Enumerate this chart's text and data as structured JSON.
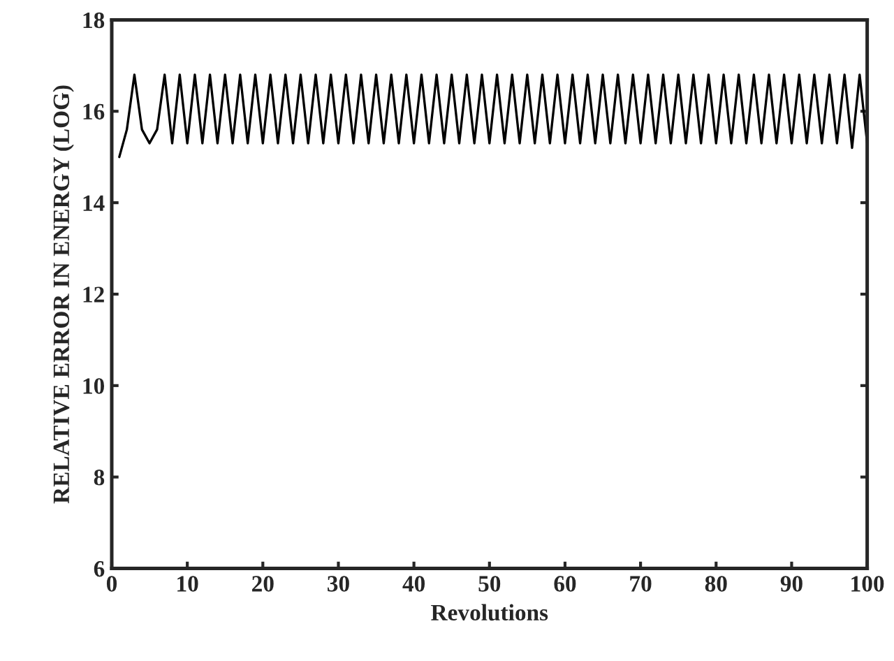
{
  "chart_data": {
    "type": "line",
    "xlabel": "Revolutions",
    "ylabel": "RELATIVE ERROR IN ENERGY (LOG)",
    "xlim": [
      0,
      100
    ],
    "xticks": [
      0,
      10,
      20,
      30,
      40,
      50,
      60,
      70,
      80,
      90,
      100
    ],
    "ylim": [
      6,
      18
    ],
    "yticks": [
      6,
      8,
      10,
      12,
      14,
      16,
      18
    ],
    "grid": false,
    "line_style": "solid",
    "series": [
      {
        "color": "#000000",
        "x": [
          1,
          2,
          3,
          4,
          5,
          6,
          7,
          8,
          9,
          10,
          11,
          12,
          13,
          14,
          15,
          16,
          17,
          18,
          19,
          20,
          21,
          22,
          23,
          24,
          25,
          26,
          27,
          28,
          29,
          30,
          31,
          32,
          33,
          34,
          35,
          36,
          37,
          38,
          39,
          40,
          41,
          42,
          43,
          44,
          45,
          46,
          47,
          48,
          49,
          50,
          51,
          52,
          53,
          54,
          55,
          56,
          57,
          58,
          59,
          60,
          61,
          62,
          63,
          64,
          65,
          66,
          67,
          68,
          69,
          70,
          71,
          72,
          73,
          74,
          75,
          76,
          77,
          78,
          79,
          80,
          81,
          82,
          83,
          84,
          85,
          86,
          87,
          88,
          89,
          90,
          91,
          92,
          93,
          94,
          95,
          96,
          97,
          98,
          99,
          100
        ],
        "values": [
          15.0,
          15.6,
          16.8,
          15.6,
          15.3,
          15.6,
          16.8,
          15.3,
          16.8,
          15.3,
          16.8,
          15.3,
          16.8,
          15.3,
          16.8,
          15.3,
          16.8,
          15.3,
          16.8,
          15.3,
          16.8,
          15.3,
          16.8,
          15.3,
          16.8,
          15.3,
          16.8,
          15.3,
          16.8,
          15.3,
          16.8,
          15.3,
          16.8,
          15.3,
          16.8,
          15.3,
          16.8,
          15.3,
          16.8,
          15.3,
          16.8,
          15.3,
          16.8,
          15.3,
          16.8,
          15.3,
          16.8,
          15.3,
          16.8,
          15.3,
          16.8,
          15.3,
          16.8,
          15.3,
          16.8,
          15.3,
          16.8,
          15.3,
          16.8,
          15.3,
          16.8,
          15.3,
          16.8,
          15.3,
          16.8,
          15.3,
          16.8,
          15.3,
          16.8,
          15.3,
          16.8,
          15.3,
          16.8,
          15.3,
          16.8,
          15.3,
          16.8,
          15.3,
          16.8,
          15.3,
          16.8,
          15.3,
          16.8,
          15.3,
          16.8,
          15.3,
          16.8,
          15.3,
          16.8,
          15.3,
          16.8,
          15.3,
          16.8,
          15.3,
          16.8,
          15.3,
          16.8,
          15.2,
          16.8,
          15.3
        ]
      }
    ]
  }
}
